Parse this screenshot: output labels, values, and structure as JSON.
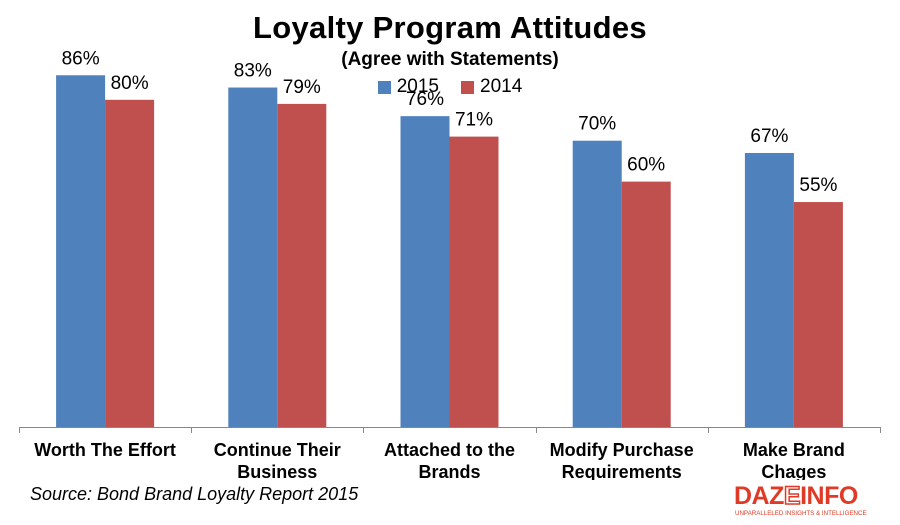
{
  "chart_data": {
    "type": "bar",
    "title": "Loyalty Program Attitudes",
    "subtitle": "(Agree with Statements)",
    "categories": [
      "Worth The Effort",
      "Continue Their Business",
      "Attached to the Brands",
      "Modify Purchase Requirements",
      "Make Brand Chages"
    ],
    "category_lines": [
      [
        "Worth The Effort"
      ],
      [
        "Continue Their",
        "Business"
      ],
      [
        "Attached to the",
        "Brands"
      ],
      [
        "Modify Purchase",
        "Requirements"
      ],
      [
        "Make Brand",
        "Chages"
      ]
    ],
    "series": [
      {
        "name": "2015",
        "color": "#4f81bd",
        "values": [
          86,
          83,
          76,
          70,
          67
        ],
        "labels": [
          "86%",
          "83%",
          "76%",
          "70%",
          "67%"
        ]
      },
      {
        "name": "2014",
        "color": "#c0504d",
        "values": [
          80,
          79,
          71,
          60,
          55
        ],
        "labels": [
          "80%",
          "79%",
          "71%",
          "60%",
          "55%"
        ]
      }
    ],
    "ylim": [
      0,
      100
    ],
    "grid": false,
    "legend_position": "top-center"
  },
  "source": "Source: Bond Brand Loyalty Report 2015",
  "logo": {
    "text": "DAZEINFO",
    "tagline": "UNPARALLELED INSIGHTS & INTELLIGENCE",
    "color": "#e03a26"
  }
}
